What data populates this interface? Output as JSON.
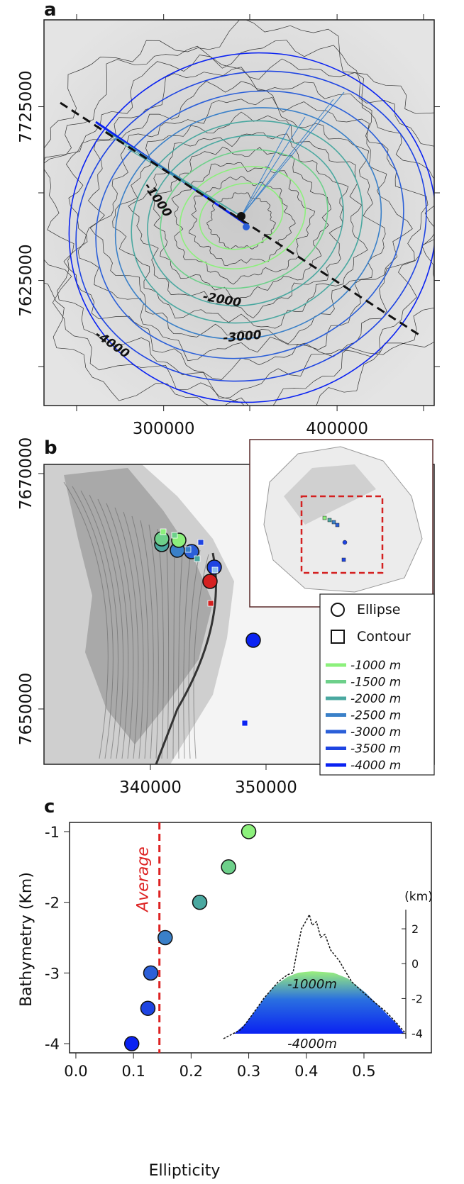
{
  "panel_a": {
    "label": "a",
    "xlim": [
      231000,
      456000
    ],
    "ylim": [
      7553000,
      7775000
    ],
    "xticks": [
      300000,
      400000
    ],
    "yticks": [
      7725000,
      7625000
    ],
    "contour_labels": [
      "-1000",
      "-2000",
      "-3000",
      "-4000"
    ]
  },
  "panel_b": {
    "label": "b",
    "xlim": [
      330800,
      364540
    ],
    "ylim": [
      7645300,
      7670780
    ],
    "xticks": [
      340000,
      350000
    ],
    "yticks": [
      7670000,
      7650000
    ],
    "legend": {
      "shapes": [
        "Ellipse",
        "Contour"
      ],
      "depths": [
        {
          "label": "-1000 m",
          "color": "#8cf07c"
        },
        {
          "label": "-1500 m",
          "color": "#6dd08a"
        },
        {
          "label": "-2000 m",
          "color": "#4aa8a0"
        },
        {
          "label": "-2500 m",
          "color": "#3a80c8"
        },
        {
          "label": "-3000 m",
          "color": "#2b5fd8"
        },
        {
          "label": "-3500 m",
          "color": "#1e44e2"
        },
        {
          "label": "-4000 m",
          "color": "#0a22f2"
        }
      ]
    }
  },
  "chart_data": {
    "type": "scatter",
    "label": "c",
    "x_label": "Ellipticity",
    "y_label": "Bathymetry (Km)",
    "x": [
      0.3,
      0.265,
      0.215,
      0.155,
      0.13,
      0.125,
      0.097
    ],
    "values": [
      -1,
      -1.5,
      -2,
      -2.5,
      -3,
      -3.5,
      -4
    ],
    "colors": [
      "#8cf07c",
      "#6dd08a",
      "#4aa8a0",
      "#3a80c8",
      "#2b5fd8",
      "#1e44e2",
      "#0a22f2"
    ],
    "xlim": [
      -0.011,
      0.617
    ],
    "ylim": [
      -4.13,
      -0.87
    ],
    "xticks": [
      {
        "value": 0,
        "label": "0.0"
      },
      0.1,
      0.2,
      0.3,
      0.4,
      0.5
    ],
    "yticks": [
      -1,
      -2,
      -3,
      -4
    ],
    "average_line": {
      "label": "Average",
      "x": 0.145,
      "color": "#dd2222"
    },
    "inset": {
      "unit_label": "(km)",
      "ylim": [
        -4.3,
        3.1
      ],
      "yticks": [
        2,
        0,
        -2,
        -4
      ],
      "profile_labels": [
        "-1000m",
        "-4000m"
      ]
    }
  }
}
